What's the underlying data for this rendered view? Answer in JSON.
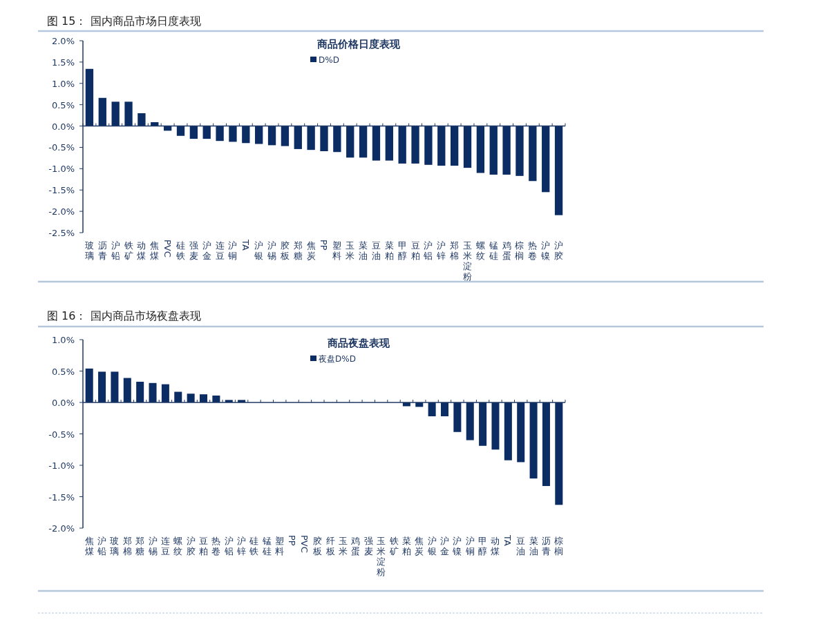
{
  "chart_data": [
    {
      "type": "bar",
      "title": "图 15：  国内商品市场日度表现",
      "subtitle": "商品价格日度表现",
      "categories": [
        "玻璃",
        "沥青",
        "沪铅",
        "铁矿",
        "动煤",
        "焦煤",
        "PVC",
        "硅铁",
        "强麦",
        "沪金",
        "连豆",
        "沪铜",
        "TA",
        "沪银",
        "沪锡",
        "胶板",
        "郑糖",
        "焦炭",
        "PP",
        "塑料",
        "玉米",
        "菜油",
        "豆油",
        "菜粕",
        "甲醇",
        "豆粕",
        "沪铝",
        "沪锌",
        "郑棉",
        "玉米淀粉",
        "螺纹",
        "锰硅",
        "鸡蛋",
        "棕榈",
        "热卷",
        "沪镍",
        "沪胶"
      ],
      "series": [
        {
          "name": "D%D",
          "color": "#0c2d63",
          "values": [
            1.34,
            0.66,
            0.57,
            0.57,
            0.3,
            0.09,
            -0.11,
            -0.23,
            -0.3,
            -0.3,
            -0.35,
            -0.37,
            -0.4,
            -0.42,
            -0.45,
            -0.47,
            -0.54,
            -0.56,
            -0.59,
            -0.61,
            -0.74,
            -0.74,
            -0.81,
            -0.81,
            -0.88,
            -0.88,
            -0.91,
            -0.93,
            -0.93,
            -0.98,
            -1.1,
            -1.14,
            -1.14,
            -1.17,
            -1.29,
            -1.55,
            -2.09
          ]
        }
      ],
      "ylim": [
        -2.5,
        2.0
      ],
      "yticks": [
        {
          "value": -2.5,
          "label": "-2.5%"
        },
        {
          "value": -2.0,
          "label": "-2.0%"
        },
        {
          "value": -1.5,
          "label": "-1.5%"
        },
        {
          "value": -1.0,
          "label": "-1.0%"
        },
        {
          "value": -0.5,
          "label": "-0.5%"
        },
        {
          "value": 0,
          "label": "0.0%"
        },
        {
          "value": 0.5,
          "label": "0.5%"
        },
        {
          "value": 1.0,
          "label": "1.0%"
        },
        {
          "value": 1.5,
          "label": "1.5%"
        },
        {
          "value": 2.0,
          "label": "2.0%"
        }
      ],
      "ref_lines": [
        {
          "axis": "y",
          "value": 0,
          "color": "#1f3864"
        }
      ],
      "legend": "top",
      "grid": false
    },
    {
      "type": "bar",
      "title": "图 16：  国内商品市场夜盘表现",
      "subtitle": "商品夜盘表现",
      "categories": [
        "焦煤",
        "沪铅",
        "玻璃",
        "郑棉",
        "郑糖",
        "沪锡",
        "连豆",
        "螺纹",
        "沪胶",
        "豆粕",
        "热卷",
        "沪铝",
        "沪锌",
        "硅铁",
        "锰硅",
        "塑料",
        "PP",
        "PVC",
        "胶板",
        "纤板",
        "玉米",
        "鸡蛋",
        "强麦",
        "玉米淀粉",
        "铁矿",
        "菜粕",
        "焦炭",
        "沪银",
        "沪金",
        "沪镍",
        "沪铜",
        "甲醇",
        "动煤",
        "TA",
        "豆油",
        "菜油",
        "沥青",
        "棕榈"
      ],
      "series": [
        {
          "name": "夜盘D%D",
          "color": "#0c2d63",
          "values": [
            0.54,
            0.49,
            0.49,
            0.39,
            0.33,
            0.31,
            0.29,
            0.17,
            0.14,
            0.13,
            0.11,
            0.04,
            0.04,
            0,
            0,
            0,
            0,
            0,
            0,
            0,
            0,
            0,
            0,
            0,
            0,
            -0.06,
            -0.07,
            -0.22,
            -0.22,
            -0.47,
            -0.6,
            -0.69,
            -0.75,
            -0.92,
            -0.95,
            -1.21,
            -1.33,
            -1.63
          ]
        }
      ],
      "ylim": [
        -2.0,
        1.0
      ],
      "yticks": [
        {
          "value": -2.0,
          "label": "-2.0%"
        },
        {
          "value": -1.5,
          "label": "-1.5%"
        },
        {
          "value": -1.0,
          "label": "-1.0%"
        },
        {
          "value": -0.5,
          "label": "-0.5%"
        },
        {
          "value": 0,
          "label": "0.0%"
        },
        {
          "value": 0.5,
          "label": "0.5%"
        },
        {
          "value": 1.0,
          "label": "1.0%"
        }
      ],
      "ref_lines": [
        {
          "axis": "y",
          "value": 0,
          "color": "#1f3864"
        }
      ],
      "legend": "top",
      "grid": false
    }
  ]
}
